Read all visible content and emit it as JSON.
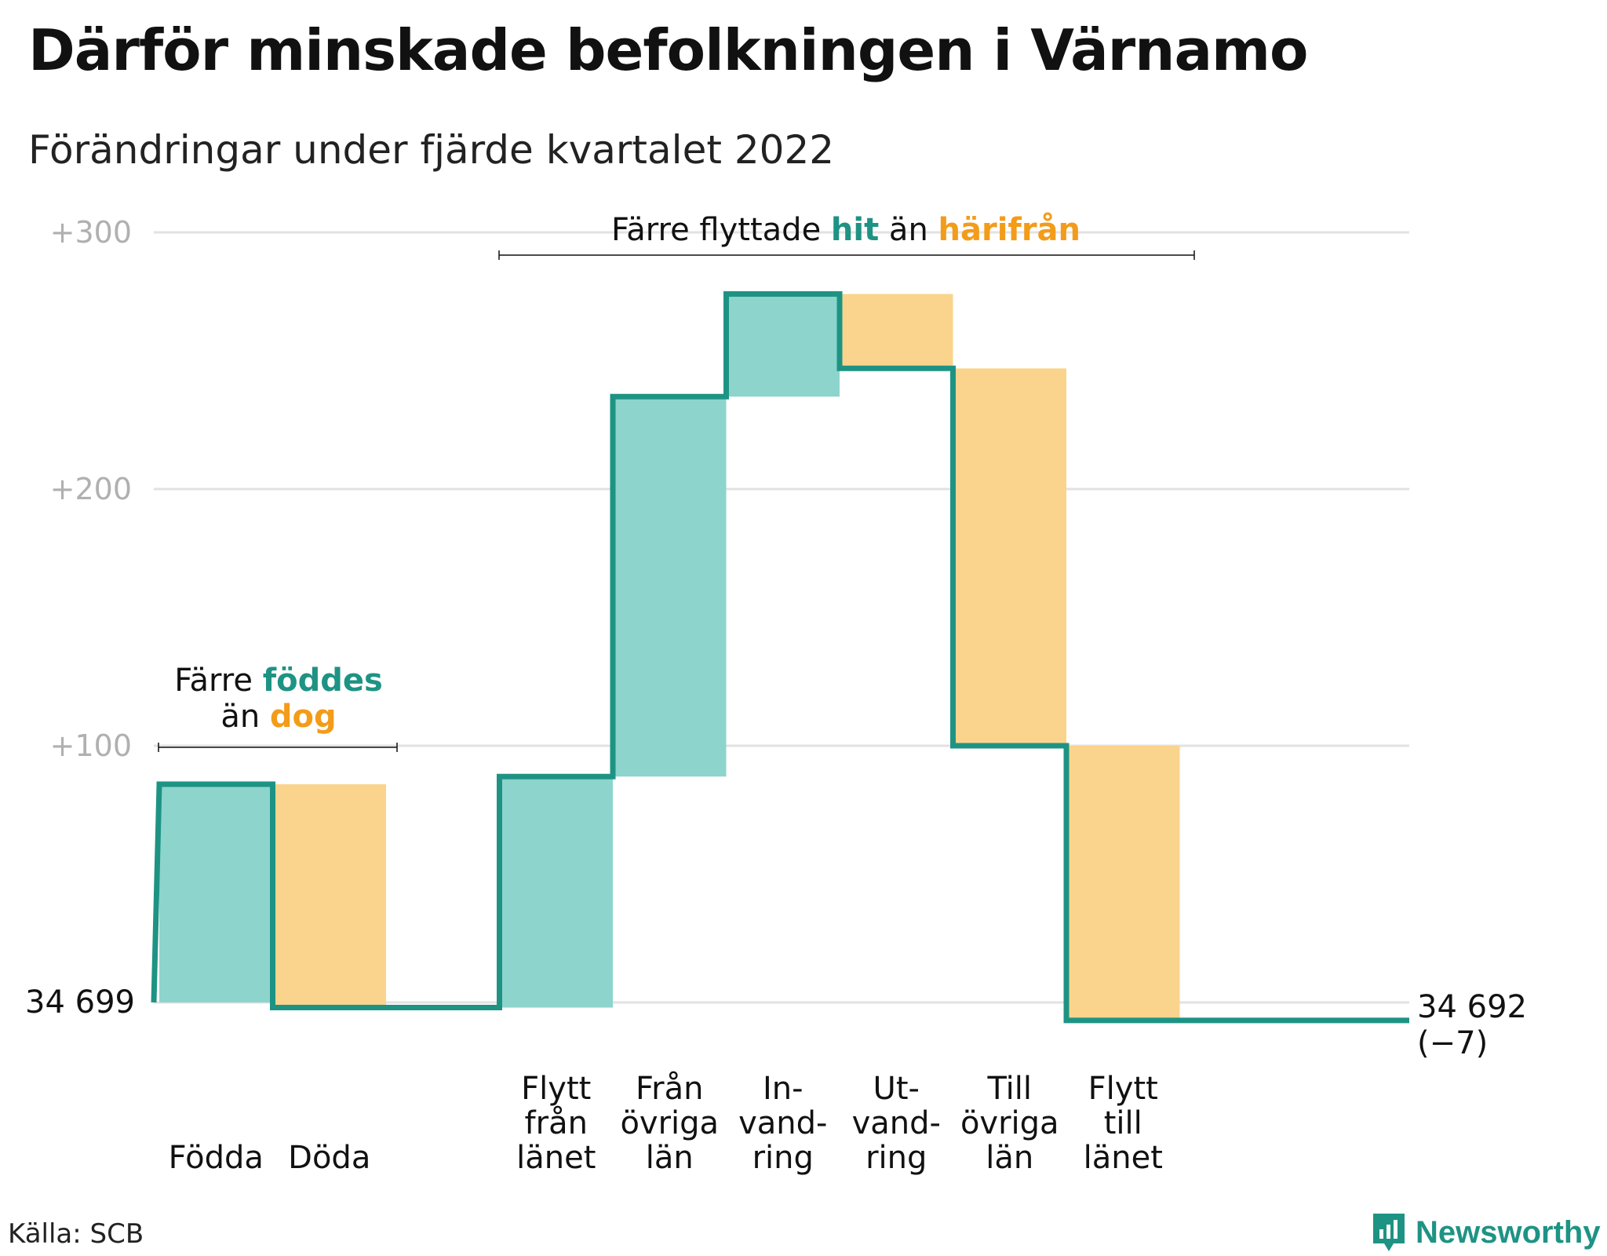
{
  "title": "Därför minskade befolkningen i Värnamo",
  "subtitle": "Förändringar under fjärde kvartalet 2022",
  "source": "Källa: SCB",
  "brand": "Newsworthy",
  "colors": {
    "increase": "#8dd4cc",
    "decrease": "#fad48c",
    "line": "#1e9384",
    "teal_text": "#1e9384",
    "orange_text": "#f39c1a",
    "grid": "#e2e2e2",
    "tick_text": "#b0b0b0"
  },
  "annotations": {
    "births": {
      "line1_prefix": "Färre ",
      "line1_highlight": "föddes",
      "line2_prefix": "än ",
      "line2_highlight": "dog"
    },
    "migration": {
      "prefix": "Färre flyttade ",
      "highlight1": "hit",
      "middle": " än ",
      "highlight2": "härifrån"
    }
  },
  "chart_data": {
    "type": "waterfall",
    "title": "Därför minskade befolkningen i Värnamo",
    "subtitle": "Förändringar under fjärde kvartalet 2022",
    "start_value": 34699,
    "start_label": "34 699",
    "end_value": 34692,
    "end_label": "34 692",
    "end_change_label": "(−7)",
    "y_ticks": [
      {
        "value": 100,
        "label": "+100"
      },
      {
        "value": 200,
        "label": "+200"
      },
      {
        "value": 300,
        "label": "+300"
      }
    ],
    "ylim": [
      -7,
      300
    ],
    "steps": [
      {
        "label_lines": [
          "Födda"
        ],
        "change": 85,
        "direction": "increase"
      },
      {
        "label_lines": [
          "Döda"
        ],
        "change": -87,
        "direction": "decrease"
      },
      {
        "label_lines": [],
        "change": 0,
        "direction": "none"
      },
      {
        "label_lines": [
          "Flytt",
          "från",
          "länet"
        ],
        "change": 90,
        "direction": "increase"
      },
      {
        "label_lines": [
          "Från",
          "övriga",
          "län"
        ],
        "change": 148,
        "direction": "increase"
      },
      {
        "label_lines": [
          "In-",
          "vand-",
          "ring"
        ],
        "change": 40,
        "direction": "increase"
      },
      {
        "label_lines": [
          "Ut-",
          "vand-",
          "ring"
        ],
        "change": -29,
        "direction": "decrease"
      },
      {
        "label_lines": [
          "Till",
          "övriga",
          "län"
        ],
        "change": -147,
        "direction": "decrease"
      },
      {
        "label_lines": [
          "Flytt",
          "till",
          "länet"
        ],
        "change": -107,
        "direction": "decrease"
      },
      {
        "label_lines": [],
        "change": 0,
        "direction": "none"
      }
    ]
  }
}
